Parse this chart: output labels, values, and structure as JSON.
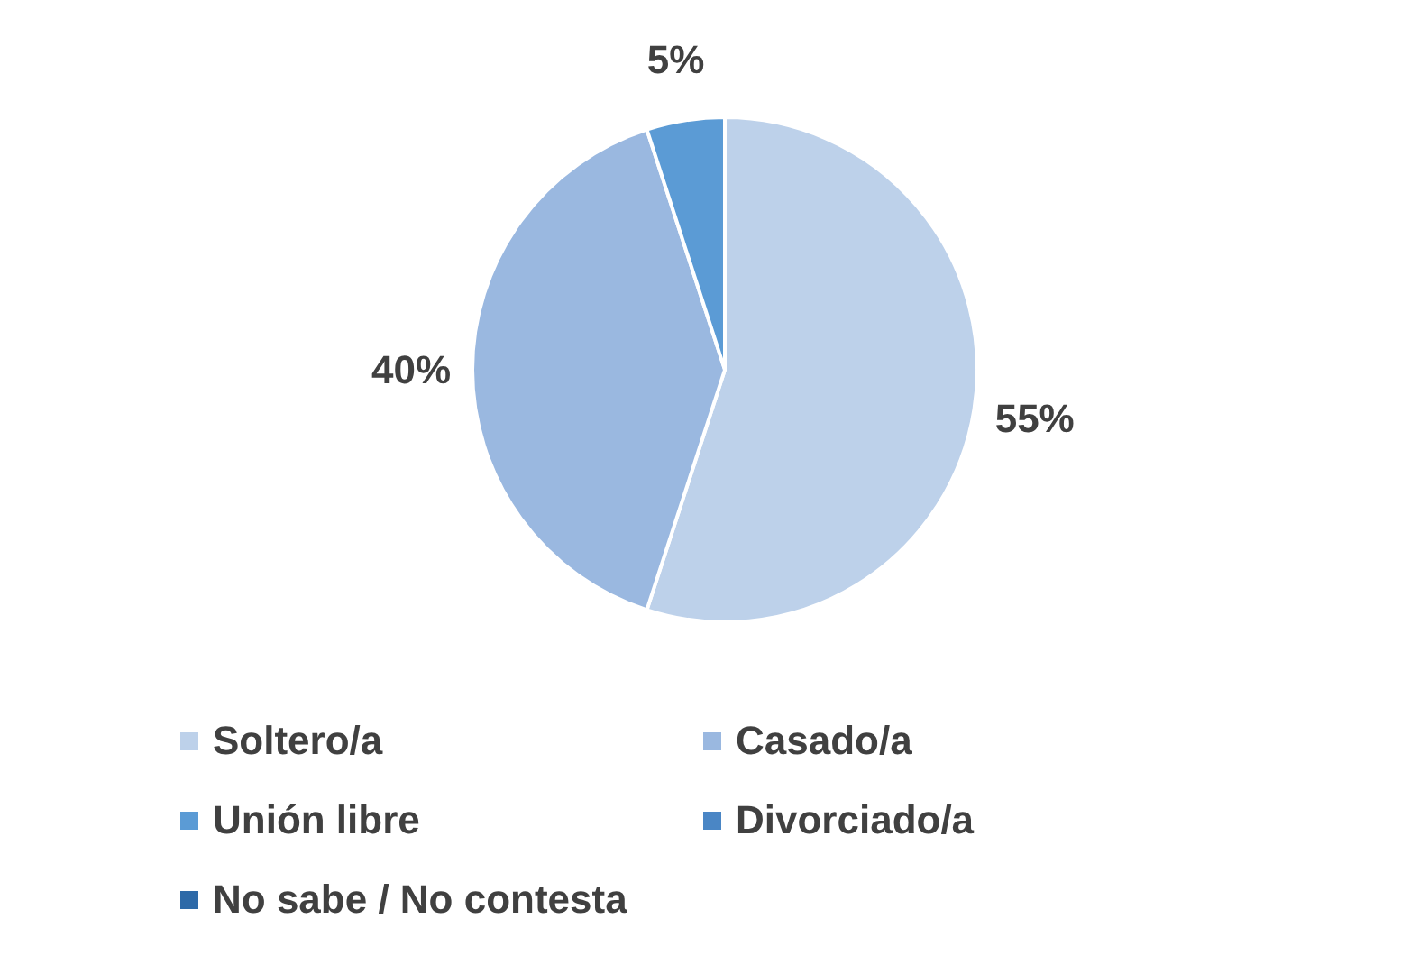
{
  "chart_data": {
    "type": "pie",
    "categories": [
      "Soltero/a",
      "Casado/a",
      "Unión libre",
      "Divorciado/a",
      "No sabe / No contesta"
    ],
    "values": [
      55,
      40,
      5,
      0,
      0
    ],
    "colors": [
      "#bdd1ea",
      "#9ab8e0",
      "#5b9bd5",
      "#4a86c5",
      "#2e6aa8"
    ],
    "value_labels": [
      "55%",
      "40%",
      "5%",
      null,
      null
    ],
    "legend": "bottom"
  }
}
